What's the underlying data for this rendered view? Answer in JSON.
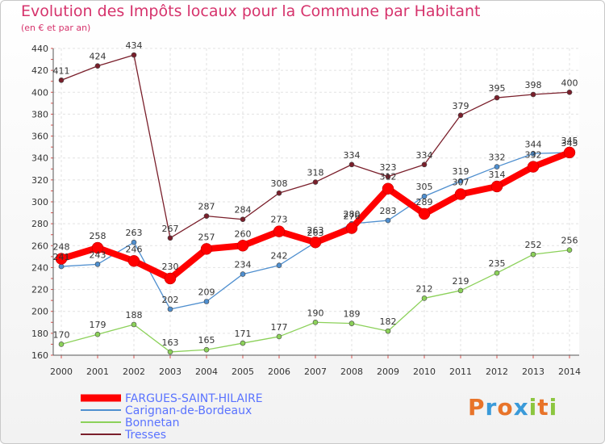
{
  "header": {
    "title": "Evolution des Impôts locaux pour la Commune par Habitant",
    "subtitle": "(en € et par an)"
  },
  "brand": {
    "letters": [
      "P",
      "r",
      "o",
      "x",
      "i",
      "t",
      "i"
    ],
    "colors": [
      "#e8742a",
      "#3a9ad9",
      "#e8742a",
      "#3a9ad9",
      "#8cc63f",
      "#e8742a",
      "#8cc63f"
    ]
  },
  "chart_data": {
    "type": "line",
    "x": [
      "2000",
      "2001",
      "2002",
      "2003",
      "2004",
      "2005",
      "2006",
      "2007",
      "2008",
      "2009",
      "2010",
      "2011",
      "2012",
      "2013",
      "2014"
    ],
    "ylim": [
      160,
      440
    ],
    "yticks": [
      160,
      180,
      200,
      220,
      240,
      260,
      280,
      300,
      320,
      340,
      360,
      380,
      400,
      420,
      440
    ],
    "grid": true,
    "legend_position": "bottom-left",
    "series": [
      {
        "name": "Tresses",
        "color": "#7a1f2b",
        "values": [
          411,
          424,
          434,
          267,
          287,
          284,
          308,
          318,
          334,
          323,
          334,
          379,
          395,
          398,
          400
        ]
      },
      {
        "name": "Carignan-de-Bordeaux",
        "color": "#4f8fcf",
        "values": [
          241,
          243,
          263,
          202,
          209,
          234,
          242,
          263,
          280,
          283,
          305,
          319,
          332,
          344,
          345
        ]
      },
      {
        "name": "Bonnetan",
        "color": "#8cd15a",
        "values": [
          170,
          179,
          188,
          163,
          165,
          171,
          177,
          190,
          189,
          182,
          212,
          219,
          235,
          252,
          256
        ]
      },
      {
        "name": "FARGUES-SAINT-HILAIRE",
        "color": "#ff0000",
        "values": [
          248,
          258,
          246,
          230,
          257,
          260,
          273,
          263,
          276,
          312,
          289,
          307,
          314,
          332,
          345
        ]
      }
    ],
    "legend_order": [
      "FARGUES-SAINT-HILAIRE",
      "Carignan-de-Bordeaux",
      "Bonnetan",
      "Tresses"
    ]
  }
}
